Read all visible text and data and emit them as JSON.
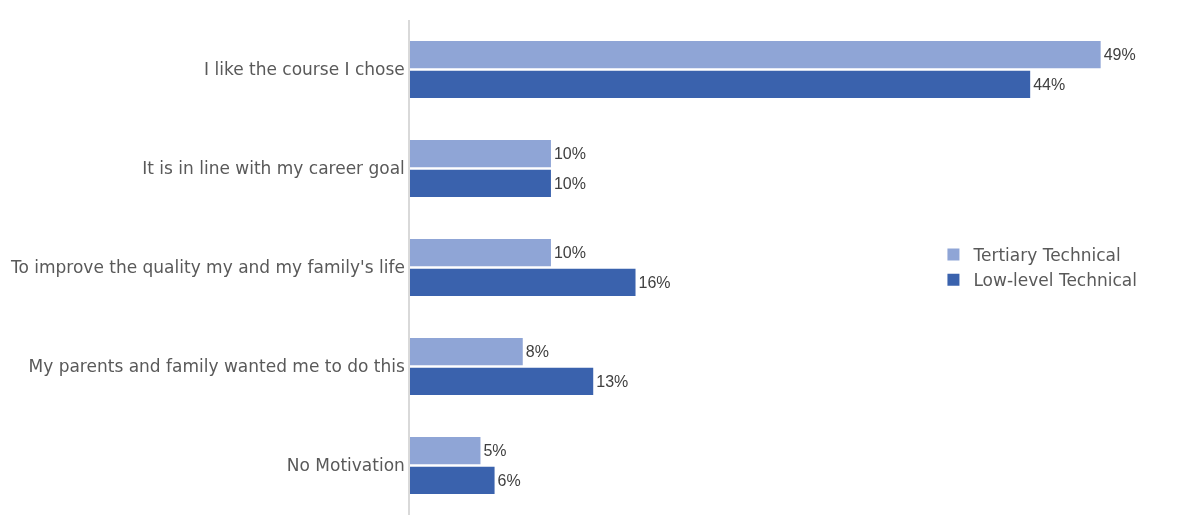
{
  "chart_data": {
    "type": "bar",
    "orientation": "horizontal",
    "legend": "right",
    "grid": false,
    "categories": [
      "I like the course I chose",
      "It is in line with my career goal",
      "To improve the quality my and my family's life",
      "My parents and family wanted me to do this",
      "No Motivation"
    ],
    "series": [
      {
        "name": "Tertiary Technical",
        "color": "#8fa5d6",
        "values": [
          49,
          10,
          10,
          8,
          5
        ],
        "value_labels": [
          "49%",
          "10%",
          "10%",
          "8%",
          "5%"
        ]
      },
      {
        "name": "Low-level Technical",
        "color": "#3a62ad",
        "values": [
          44,
          10,
          16,
          13,
          6
        ],
        "value_labels": [
          "44%",
          "10%",
          "16%",
          "13%",
          "6%"
        ]
      }
    ]
  }
}
